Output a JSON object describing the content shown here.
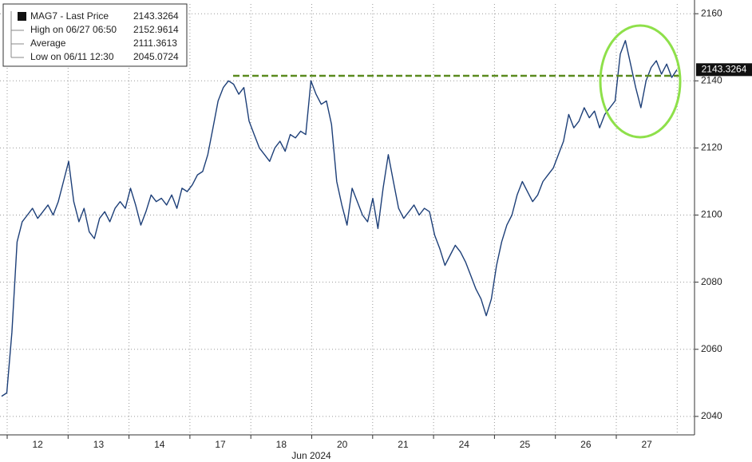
{
  "chart_data": {
    "type": "line",
    "xlabel": "Jun 2024",
    "xticks": [
      "12",
      "13",
      "14",
      "17",
      "18",
      "20",
      "21",
      "24",
      "25",
      "26",
      "27"
    ],
    "series": [
      {
        "name": "MAG7 - Last Price",
        "color": "#1d3f78",
        "values": [
          2046,
          2047,
          2065,
          2092,
          2098,
          2100,
          2102,
          2099,
          2101,
          2103,
          2100,
          2104,
          2110,
          2116,
          2104,
          2098,
          2102,
          2095,
          2093,
          2099,
          2101,
          2098,
          2102,
          2104,
          2102,
          2108,
          2103,
          2097,
          2101,
          2106,
          2104,
          2105,
          2103,
          2106,
          2102,
          2108,
          2107,
          2109,
          2112,
          2113,
          2118,
          2126,
          2134,
          2138,
          2140,
          2139,
          2136,
          2138,
          2128,
          2124,
          2120,
          2118,
          2116,
          2120,
          2122,
          2119,
          2124,
          2123,
          2125,
          2124,
          2140,
          2136,
          2133,
          2134,
          2127,
          2110,
          2103,
          2097,
          2108,
          2104,
          2100,
          2098,
          2105,
          2096,
          2108,
          2118,
          2110,
          2102,
          2099,
          2101,
          2103,
          2100,
          2102,
          2101,
          2094,
          2090,
          2085,
          2088,
          2091,
          2089,
          2086,
          2082,
          2078,
          2075,
          2070,
          2075,
          2085,
          2092,
          2097,
          2100,
          2106,
          2110,
          2107,
          2104,
          2106,
          2110,
          2112,
          2114,
          2118,
          2122,
          2130,
          2126,
          2128,
          2132,
          2129,
          2131,
          2126,
          2130,
          2132,
          2134,
          2148,
          2152,
          2145,
          2138,
          2132,
          2140,
          2144,
          2146,
          2142,
          2145,
          2141,
          2143.3264
        ]
      }
    ],
    "stats": [
      {
        "label": "High on 06/27 06:50",
        "value": 2152.9614
      },
      {
        "label": "Average",
        "value": 2111.3613
      },
      {
        "label": "Low on 06/11 12:30",
        "value": 2045.0724
      }
    ],
    "reference_line": {
      "value": 2141.5,
      "color": "#5a8a1e"
    },
    "ylim": [
      2034.5,
      2162.9
    ],
    "yticks": [
      2040,
      2060,
      2080,
      2100,
      2120,
      2140,
      2160
    ],
    "grid": true
  }
}
